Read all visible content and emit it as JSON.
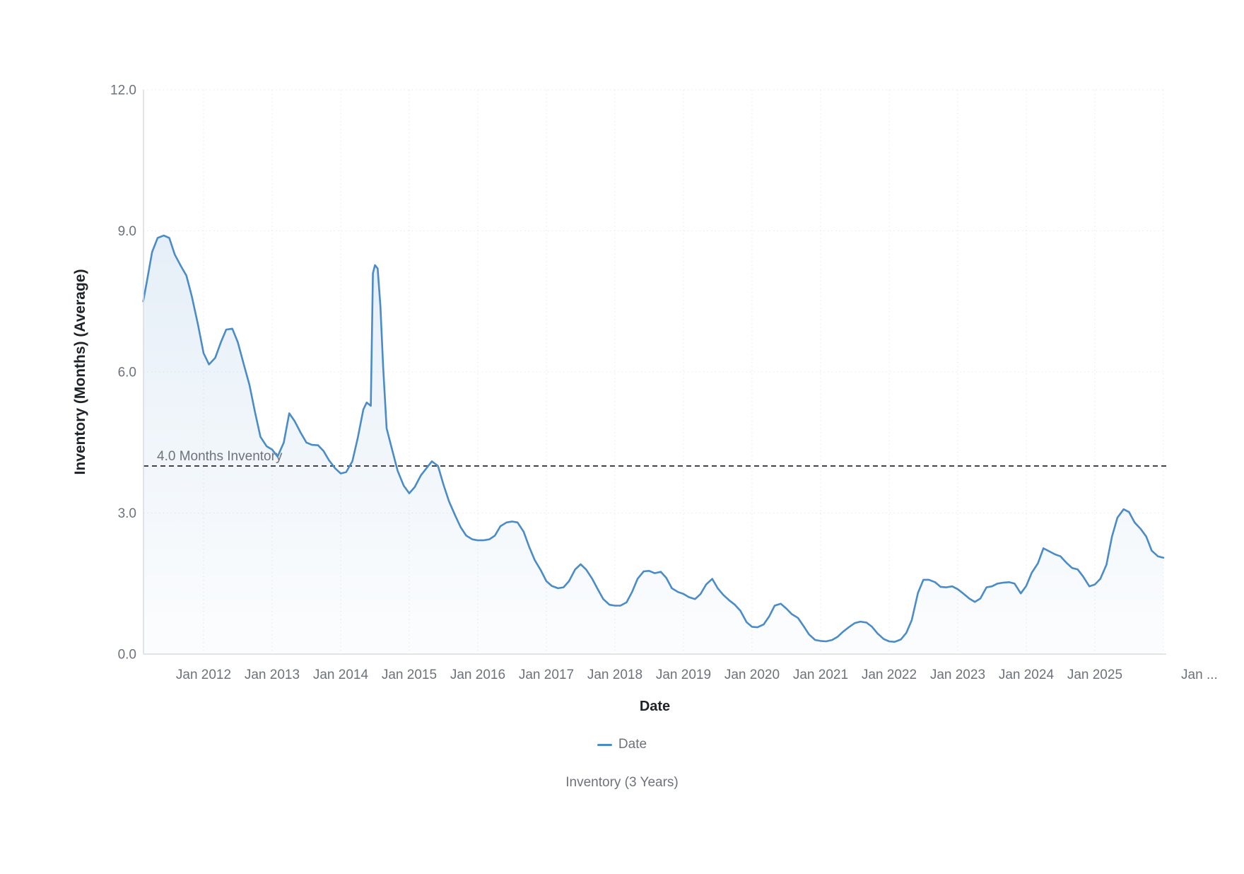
{
  "chart_data": {
    "type": "area",
    "title": "",
    "subtitle": "Inventory (3 Years)",
    "xlabel": "Date",
    "ylabel": "Inventory (Months) (Average)",
    "legend": [
      {
        "label": "Date"
      }
    ],
    "legend_position": "bottom",
    "grid": true,
    "x_domain": [
      2011.124,
      2026.042
    ],
    "y_domain": [
      0,
      12
    ],
    "x_ticks": [
      {
        "x": 2012,
        "label": "Jan 2012"
      },
      {
        "x": 2013,
        "label": "Jan 2013"
      },
      {
        "x": 2014,
        "label": "Jan 2014"
      },
      {
        "x": 2015,
        "label": "Jan 2015"
      },
      {
        "x": 2016,
        "label": "Jan 2016"
      },
      {
        "x": 2017,
        "label": "Jan 2017"
      },
      {
        "x": 2018,
        "label": "Jan 2018"
      },
      {
        "x": 2019,
        "label": "Jan 2019"
      },
      {
        "x": 2020,
        "label": "Jan 2020"
      },
      {
        "x": 2021,
        "label": "Jan 2021"
      },
      {
        "x": 2022,
        "label": "Jan 2022"
      },
      {
        "x": 2023,
        "label": "Jan 2023"
      },
      {
        "x": 2024,
        "label": "Jan 2024"
      },
      {
        "x": 2025,
        "label": "Jan 2025"
      },
      {
        "x": 2026,
        "label": "Jan ...",
        "label_dx": 51
      }
    ],
    "y_ticks": [
      {
        "y": 0,
        "label": "0.0"
      },
      {
        "y": 3,
        "label": "3.0"
      },
      {
        "y": 6,
        "label": "6.0"
      },
      {
        "y": 9,
        "label": "9.0"
      },
      {
        "y": 12,
        "label": "12.0"
      }
    ],
    "threshold": {
      "value": 4.0,
      "label": "4.0 Months Inventory"
    },
    "colors": {
      "line": "#4a8bc9",
      "area_top": "rgba(74,139,201,0.18)",
      "area_bottom": "rgba(74,139,201,0.02)",
      "axis": "#d8dbdf",
      "grid": "#e6e9ed",
      "tick_text": "#6d727b",
      "title_text": "#1f2328",
      "threshold_line": "#40454d",
      "threshold_text": "#6d727b"
    },
    "series": [
      {
        "name": "Date",
        "points": [
          [
            2011.12,
            7.5
          ],
          [
            2011.17,
            7.9
          ],
          [
            2011.25,
            8.55
          ],
          [
            2011.33,
            8.85
          ],
          [
            2011.42,
            8.9
          ],
          [
            2011.5,
            8.85
          ],
          [
            2011.58,
            8.5
          ],
          [
            2011.67,
            8.25
          ],
          [
            2011.75,
            8.05
          ],
          [
            2011.83,
            7.6
          ],
          [
            2011.92,
            7.0
          ],
          [
            2012.0,
            6.4
          ],
          [
            2012.08,
            6.16
          ],
          [
            2012.17,
            6.3
          ],
          [
            2012.25,
            6.62
          ],
          [
            2012.33,
            6.9
          ],
          [
            2012.42,
            6.92
          ],
          [
            2012.5,
            6.63
          ],
          [
            2012.58,
            6.2
          ],
          [
            2012.67,
            5.72
          ],
          [
            2012.75,
            5.15
          ],
          [
            2012.83,
            4.62
          ],
          [
            2012.92,
            4.42
          ],
          [
            2013.0,
            4.35
          ],
          [
            2013.08,
            4.2
          ],
          [
            2013.17,
            4.5
          ],
          [
            2013.25,
            5.12
          ],
          [
            2013.33,
            4.95
          ],
          [
            2013.42,
            4.7
          ],
          [
            2013.5,
            4.5
          ],
          [
            2013.58,
            4.45
          ],
          [
            2013.67,
            4.44
          ],
          [
            2013.75,
            4.32
          ],
          [
            2013.83,
            4.12
          ],
          [
            2013.92,
            3.95
          ],
          [
            2014.0,
            3.84
          ],
          [
            2014.08,
            3.87
          ],
          [
            2014.17,
            4.1
          ],
          [
            2014.25,
            4.6
          ],
          [
            2014.33,
            5.2
          ],
          [
            2014.38,
            5.35
          ],
          [
            2014.44,
            5.28
          ],
          [
            2014.47,
            8.1
          ],
          [
            2014.5,
            8.27
          ],
          [
            2014.54,
            8.2
          ],
          [
            2014.58,
            7.4
          ],
          [
            2014.62,
            6.1
          ],
          [
            2014.67,
            4.8
          ],
          [
            2014.75,
            4.35
          ],
          [
            2014.83,
            3.9
          ],
          [
            2014.92,
            3.58
          ],
          [
            2015.0,
            3.42
          ],
          [
            2015.08,
            3.55
          ],
          [
            2015.17,
            3.8
          ],
          [
            2015.25,
            3.95
          ],
          [
            2015.33,
            4.1
          ],
          [
            2015.42,
            4.0
          ],
          [
            2015.5,
            3.6
          ],
          [
            2015.58,
            3.25
          ],
          [
            2015.67,
            2.95
          ],
          [
            2015.75,
            2.7
          ],
          [
            2015.83,
            2.52
          ],
          [
            2015.92,
            2.44
          ],
          [
            2016.0,
            2.42
          ],
          [
            2016.08,
            2.42
          ],
          [
            2016.17,
            2.44
          ],
          [
            2016.25,
            2.52
          ],
          [
            2016.33,
            2.72
          ],
          [
            2016.42,
            2.8
          ],
          [
            2016.5,
            2.82
          ],
          [
            2016.58,
            2.8
          ],
          [
            2016.67,
            2.6
          ],
          [
            2016.75,
            2.28
          ],
          [
            2016.83,
            2.0
          ],
          [
            2016.92,
            1.78
          ],
          [
            2017.0,
            1.55
          ],
          [
            2017.08,
            1.45
          ],
          [
            2017.17,
            1.4
          ],
          [
            2017.25,
            1.42
          ],
          [
            2017.33,
            1.55
          ],
          [
            2017.42,
            1.8
          ],
          [
            2017.5,
            1.91
          ],
          [
            2017.58,
            1.8
          ],
          [
            2017.67,
            1.6
          ],
          [
            2017.75,
            1.38
          ],
          [
            2017.83,
            1.17
          ],
          [
            2017.92,
            1.05
          ],
          [
            2018.0,
            1.03
          ],
          [
            2018.08,
            1.03
          ],
          [
            2018.17,
            1.1
          ],
          [
            2018.25,
            1.32
          ],
          [
            2018.33,
            1.6
          ],
          [
            2018.42,
            1.76
          ],
          [
            2018.5,
            1.77
          ],
          [
            2018.58,
            1.72
          ],
          [
            2018.67,
            1.75
          ],
          [
            2018.75,
            1.62
          ],
          [
            2018.83,
            1.4
          ],
          [
            2018.92,
            1.32
          ],
          [
            2019.0,
            1.28
          ],
          [
            2019.08,
            1.21
          ],
          [
            2019.17,
            1.17
          ],
          [
            2019.25,
            1.28
          ],
          [
            2019.33,
            1.48
          ],
          [
            2019.42,
            1.6
          ],
          [
            2019.5,
            1.4
          ],
          [
            2019.58,
            1.26
          ],
          [
            2019.67,
            1.14
          ],
          [
            2019.75,
            1.05
          ],
          [
            2019.83,
            0.92
          ],
          [
            2019.92,
            0.68
          ],
          [
            2020.0,
            0.58
          ],
          [
            2020.08,
            0.57
          ],
          [
            2020.17,
            0.63
          ],
          [
            2020.25,
            0.8
          ],
          [
            2020.33,
            1.03
          ],
          [
            2020.42,
            1.07
          ],
          [
            2020.5,
            0.97
          ],
          [
            2020.58,
            0.85
          ],
          [
            2020.67,
            0.77
          ],
          [
            2020.75,
            0.6
          ],
          [
            2020.83,
            0.42
          ],
          [
            2020.92,
            0.3
          ],
          [
            2021.0,
            0.28
          ],
          [
            2021.08,
            0.27
          ],
          [
            2021.17,
            0.3
          ],
          [
            2021.25,
            0.37
          ],
          [
            2021.33,
            0.48
          ],
          [
            2021.42,
            0.58
          ],
          [
            2021.5,
            0.66
          ],
          [
            2021.58,
            0.69
          ],
          [
            2021.67,
            0.67
          ],
          [
            2021.75,
            0.58
          ],
          [
            2021.83,
            0.44
          ],
          [
            2021.92,
            0.32
          ],
          [
            2022.0,
            0.27
          ],
          [
            2022.08,
            0.26
          ],
          [
            2022.17,
            0.31
          ],
          [
            2022.25,
            0.45
          ],
          [
            2022.33,
            0.72
          ],
          [
            2022.42,
            1.3
          ],
          [
            2022.5,
            1.58
          ],
          [
            2022.58,
            1.58
          ],
          [
            2022.67,
            1.53
          ],
          [
            2022.75,
            1.43
          ],
          [
            2022.83,
            1.42
          ],
          [
            2022.92,
            1.44
          ],
          [
            2023.0,
            1.38
          ],
          [
            2023.08,
            1.29
          ],
          [
            2023.17,
            1.18
          ],
          [
            2023.25,
            1.11
          ],
          [
            2023.33,
            1.18
          ],
          [
            2023.42,
            1.42
          ],
          [
            2023.5,
            1.44
          ],
          [
            2023.58,
            1.5
          ],
          [
            2023.67,
            1.52
          ],
          [
            2023.75,
            1.53
          ],
          [
            2023.83,
            1.5
          ],
          [
            2023.92,
            1.29
          ],
          [
            2024.0,
            1.45
          ],
          [
            2024.08,
            1.73
          ],
          [
            2024.17,
            1.93
          ],
          [
            2024.25,
            2.25
          ],
          [
            2024.33,
            2.19
          ],
          [
            2024.42,
            2.12
          ],
          [
            2024.5,
            2.08
          ],
          [
            2024.58,
            1.95
          ],
          [
            2024.67,
            1.83
          ],
          [
            2024.75,
            1.8
          ],
          [
            2024.83,
            1.65
          ],
          [
            2024.92,
            1.44
          ],
          [
            2025.0,
            1.48
          ],
          [
            2025.08,
            1.6
          ],
          [
            2025.17,
            1.9
          ],
          [
            2025.25,
            2.5
          ],
          [
            2025.33,
            2.9
          ],
          [
            2025.42,
            3.08
          ],
          [
            2025.5,
            3.02
          ],
          [
            2025.58,
            2.8
          ],
          [
            2025.67,
            2.66
          ],
          [
            2025.75,
            2.5
          ],
          [
            2025.83,
            2.2
          ],
          [
            2025.92,
            2.08
          ],
          [
            2026.0,
            2.05
          ]
        ]
      }
    ]
  }
}
